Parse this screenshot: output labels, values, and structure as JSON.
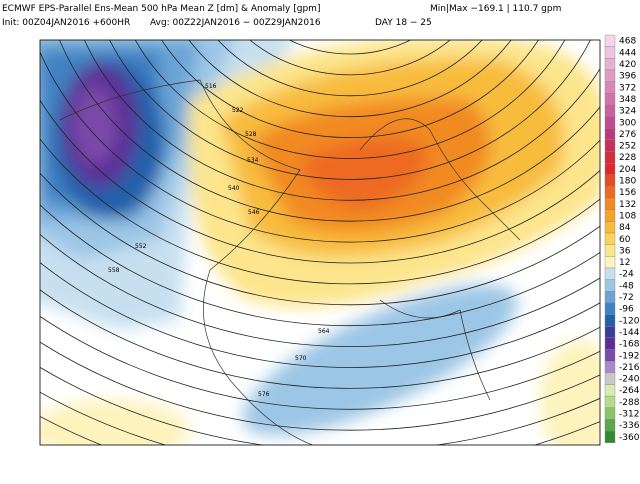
{
  "header": {
    "title": "ECMWF EPS-Parallel Ens-Mean 500 hPa Mean Z [dm] & Anomaly [gpm]",
    "minmax": "Min|Max −169.1 | 110.7 gpm",
    "init": "Init: 00Z04JAN2016 +600HR",
    "avg": "Avg: 00Z22JAN2016 − 00Z29JAN2016",
    "day": "DAY 18 − 25"
  },
  "colorbar": {
    "labels": [
      468,
      444,
      420,
      396,
      372,
      348,
      324,
      300,
      276,
      252,
      228,
      204,
      180,
      156,
      132,
      108,
      84,
      60,
      36,
      12,
      -24,
      -48,
      -72,
      -96,
      -120,
      -144,
      -168,
      -192,
      -216,
      -240,
      -264,
      -288,
      -312,
      -336,
      -360
    ],
    "colors": [
      "#f3d6ea",
      "#edc4df",
      "#e6b0d2",
      "#df9cc5",
      "#d888b8",
      "#d074ab",
      "#c8609e",
      "#c04d90",
      "#b83a82",
      "#c8305a",
      "#d42a3c",
      "#e0282a",
      "#e84a22",
      "#ee6a20",
      "#f28a22",
      "#f6a428",
      "#f8bc3c",
      "#fad260",
      "#fce58c",
      "#fdf3bc",
      "#c7e0f0",
      "#9cc6e6",
      "#6aa4d6",
      "#3f82c2",
      "#2460aa",
      "#3b3c98",
      "#5a2e96",
      "#7a4aa8",
      "#a888c8",
      "#c8c8c8",
      "#d6ecb0",
      "#b4dc8a",
      "#8ac468",
      "#5aa84a",
      "#2e8a34"
    ]
  },
  "contour_labels": [
    516,
    522,
    528,
    534,
    540,
    546,
    552,
    558,
    564,
    570,
    576
  ]
}
